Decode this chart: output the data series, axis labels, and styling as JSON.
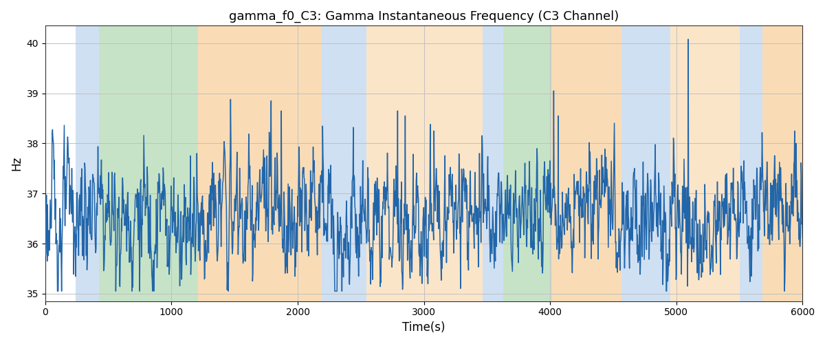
{
  "title": "gamma_f0_C3: Gamma Instantaneous Frequency (C3 Channel)",
  "xlabel": "Time(s)",
  "ylabel": "Hz",
  "xlim": [
    0,
    6000
  ],
  "ylim": [
    34.85,
    40.35
  ],
  "yticks": [
    35,
    36,
    37,
    38,
    39,
    40
  ],
  "xticks": [
    0,
    1000,
    2000,
    3000,
    4000,
    5000,
    6000
  ],
  "line_color": "#2266aa",
  "line_width": 1.1,
  "bg_bands": [
    {
      "xmin": 0,
      "xmax": 242,
      "color": "#ffffff",
      "alpha": 0.0
    },
    {
      "xmin": 242,
      "xmax": 424,
      "color": "#a8c8e8",
      "alpha": 0.55
    },
    {
      "xmin": 424,
      "xmax": 1210,
      "color": "#90c890",
      "alpha": 0.5
    },
    {
      "xmin": 1210,
      "xmax": 2185,
      "color": "#f5c07a",
      "alpha": 0.55
    },
    {
      "xmin": 2185,
      "xmax": 2542,
      "color": "#a8c8e8",
      "alpha": 0.55
    },
    {
      "xmin": 2542,
      "xmax": 3465,
      "color": "#f5c07a",
      "alpha": 0.4
    },
    {
      "xmin": 3465,
      "xmax": 3630,
      "color": "#a8c8e8",
      "alpha": 0.55
    },
    {
      "xmin": 3630,
      "xmax": 4015,
      "color": "#90c890",
      "alpha": 0.5
    },
    {
      "xmin": 4015,
      "xmax": 4565,
      "color": "#f5c07a",
      "alpha": 0.55
    },
    {
      "xmin": 4565,
      "xmax": 4950,
      "color": "#a8c8e8",
      "alpha": 0.55
    },
    {
      "xmin": 4950,
      "xmax": 5500,
      "color": "#f5c07a",
      "alpha": 0.4
    },
    {
      "xmin": 5500,
      "xmax": 5680,
      "color": "#a8c8e8",
      "alpha": 0.55
    },
    {
      "xmin": 5680,
      "xmax": 6000,
      "color": "#f5c07a",
      "alpha": 0.55
    }
  ],
  "grid_color": "#c0c0c0",
  "figsize": [
    12,
    5
  ],
  "dpi": 100
}
